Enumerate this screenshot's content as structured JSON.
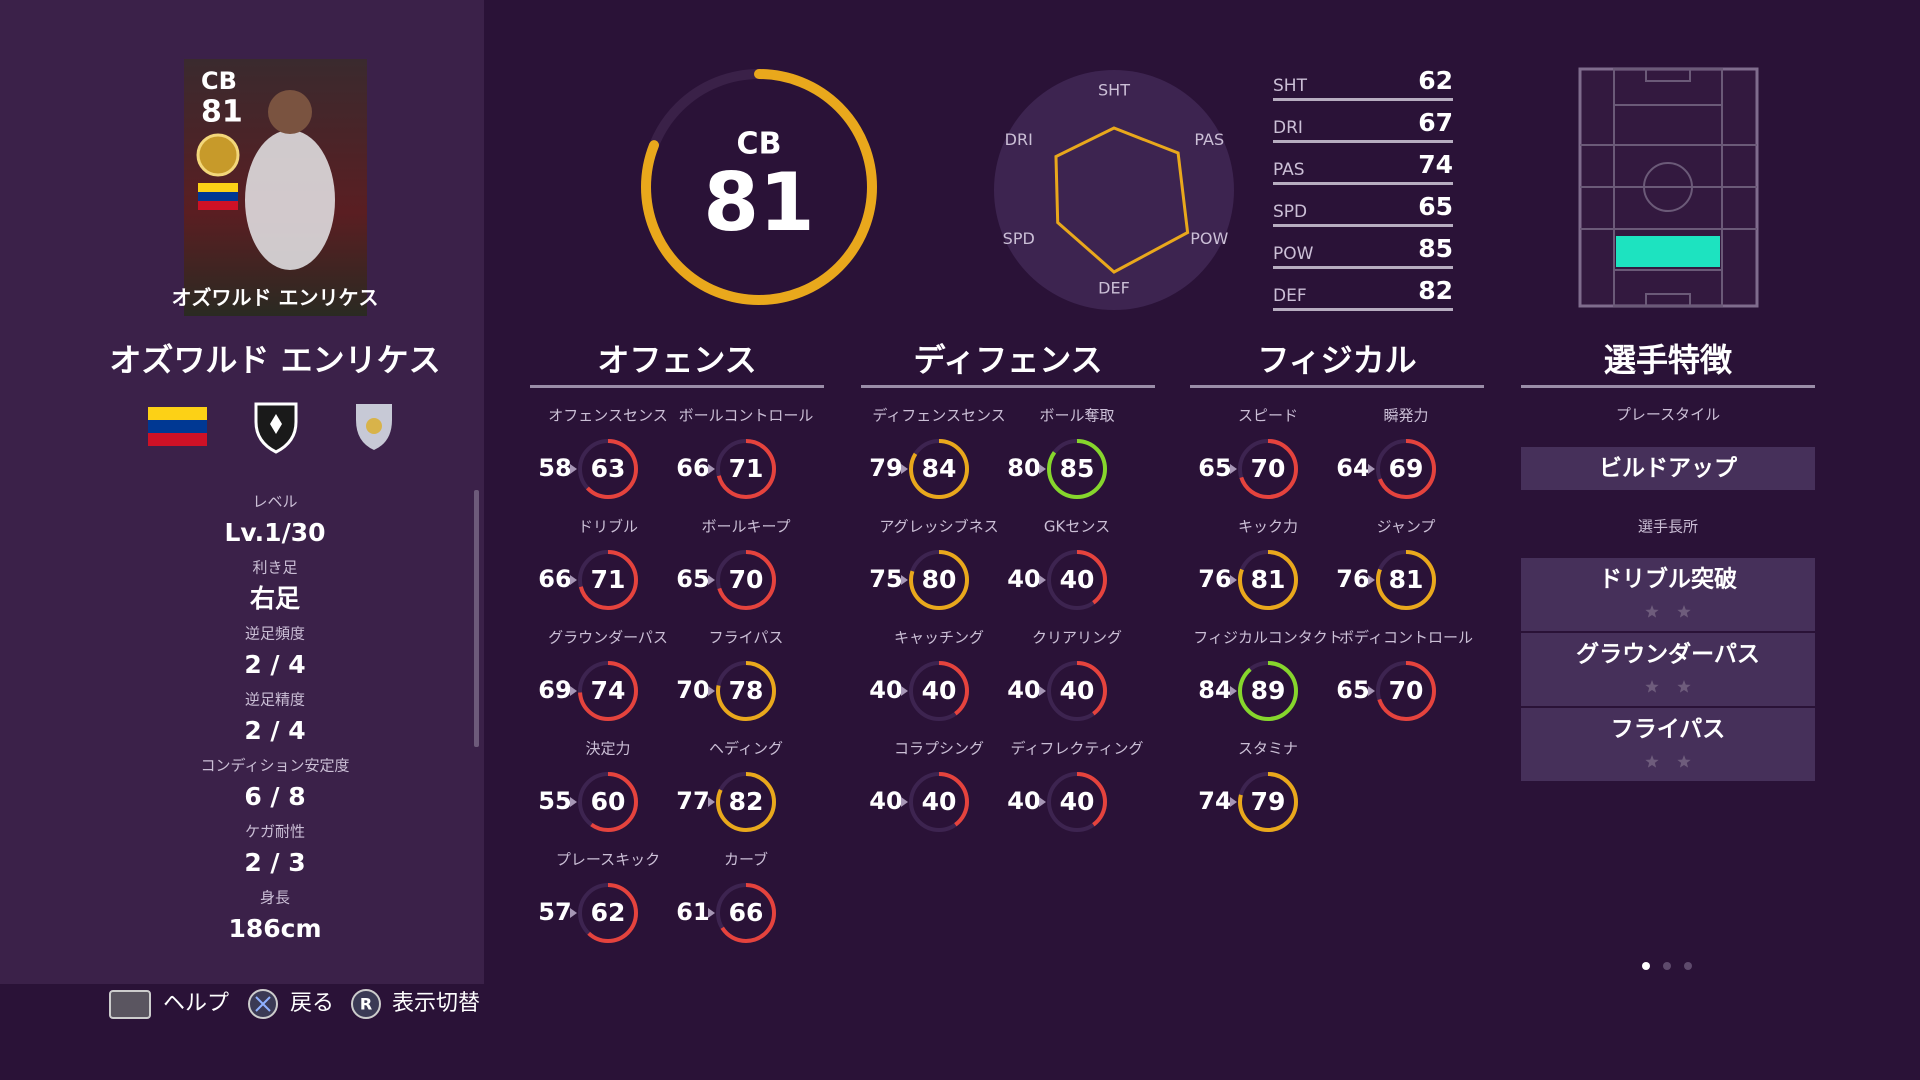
{
  "card": {
    "position": "CB",
    "rating": "81",
    "name": "オズワルド エンリケス"
  },
  "player_name": "オズワルド エンリケス",
  "profile": [
    {
      "label": "レベル",
      "value": "Lv.1/30"
    },
    {
      "label": "利き足",
      "value": "右足"
    },
    {
      "label": "逆足頻度",
      "value": "2 / 4"
    },
    {
      "label": "逆足精度",
      "value": "2 / 4"
    },
    {
      "label": "コンディション安定度",
      "value": "6 / 8"
    },
    {
      "label": "ケガ耐性",
      "value": "2 / 3"
    },
    {
      "label": "身長",
      "value": "186cm"
    }
  ],
  "overall": {
    "position": "CB",
    "rating": 81,
    "color": "#e9a81c"
  },
  "radar": {
    "labels": [
      "SHT",
      "PAS",
      "POW",
      "DEF",
      "SPD",
      "DRI"
    ],
    "color": "#e9a81c"
  },
  "stats": [
    {
      "label": "SHT",
      "value": 62
    },
    {
      "label": "DRI",
      "value": 67
    },
    {
      "label": "PAS",
      "value": 74
    },
    {
      "label": "SPD",
      "value": 65
    },
    {
      "label": "POW",
      "value": 85
    },
    {
      "label": "DEF",
      "value": 82
    }
  ],
  "sections": [
    {
      "title": "オフェンス",
      "items": [
        {
          "label": "オフェンスセンス",
          "base": 58,
          "value": 63,
          "color": "#e5433d"
        },
        {
          "label": "ボールコントロール",
          "base": 66,
          "value": 71,
          "color": "#e5433d"
        },
        {
          "label": "ドリブル",
          "base": 66,
          "value": 71,
          "color": "#e5433d"
        },
        {
          "label": "ボールキープ",
          "base": 65,
          "value": 70,
          "color": "#e5433d"
        },
        {
          "label": "グラウンダーパス",
          "base": 69,
          "value": 74,
          "color": "#e5433d"
        },
        {
          "label": "フライパス",
          "base": 70,
          "value": 78,
          "color": "#e9a81c"
        },
        {
          "label": "決定力",
          "base": 55,
          "value": 60,
          "color": "#e5433d"
        },
        {
          "label": "ヘディング",
          "base": 77,
          "value": 82,
          "color": "#e9a81c"
        },
        {
          "label": "プレースキック",
          "base": 57,
          "value": 62,
          "color": "#e5433d"
        },
        {
          "label": "カーブ",
          "base": 61,
          "value": 66,
          "color": "#e5433d"
        }
      ]
    },
    {
      "title": "ディフェンス",
      "items": [
        {
          "label": "ディフェンスセンス",
          "base": 79,
          "value": 84,
          "color": "#e9a81c"
        },
        {
          "label": "ボール奪取",
          "base": 80,
          "value": 85,
          "color": "#86d62c"
        },
        {
          "label": "アグレッシブネス",
          "base": 75,
          "value": 80,
          "color": "#e9a81c"
        },
        {
          "label": "GKセンス",
          "base": 40,
          "value": 40,
          "color": "#e5433d"
        },
        {
          "label": "キャッチング",
          "base": 40,
          "value": 40,
          "color": "#e5433d"
        },
        {
          "label": "クリアリング",
          "base": 40,
          "value": 40,
          "color": "#e5433d"
        },
        {
          "label": "コラプシング",
          "base": 40,
          "value": 40,
          "color": "#e5433d"
        },
        {
          "label": "ディフレクティング",
          "base": 40,
          "value": 40,
          "color": "#e5433d"
        }
      ]
    },
    {
      "title": "フィジカル",
      "items": [
        {
          "label": "スピード",
          "base": 65,
          "value": 70,
          "color": "#e5433d"
        },
        {
          "label": "瞬発力",
          "base": 64,
          "value": 69,
          "color": "#e5433d"
        },
        {
          "label": "キック力",
          "base": 76,
          "value": 81,
          "color": "#e9a81c"
        },
        {
          "label": "ジャンプ",
          "base": 76,
          "value": 81,
          "color": "#e9a81c"
        },
        {
          "label": "フィジカルコンタクト",
          "base": 84,
          "value": 89,
          "color": "#86d62c"
        },
        {
          "label": "ボディコントロール",
          "base": 65,
          "value": 70,
          "color": "#e5433d"
        },
        {
          "label": "スタミナ",
          "base": 74,
          "value": 79,
          "color": "#e9a81c"
        }
      ]
    }
  ],
  "traits": {
    "title": "選手特徴",
    "playstyle_label": "プレースタイル",
    "playstyle": "ビルドアップ",
    "skills_label": "選手長所",
    "skills": [
      "ドリブル突破",
      "グラウンダーパス",
      "フライパス"
    ]
  },
  "footer": {
    "help": "ヘルプ",
    "back": "戻る",
    "toggle_button": "R",
    "toggle": "表示切替"
  }
}
